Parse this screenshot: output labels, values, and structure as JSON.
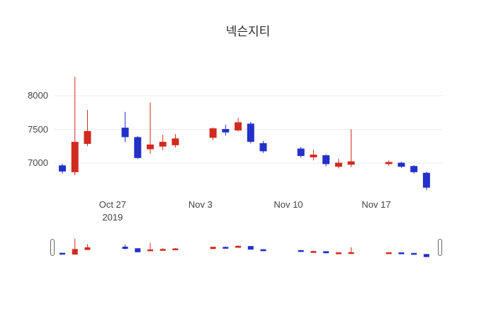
{
  "chart_data": {
    "type": "candlestick",
    "title": "넥슨지티",
    "increasing_color": "#d12a1f",
    "decreasing_color": "#2331c8",
    "grid_color": "#ebebeb",
    "axis_text_color": "#444444",
    "background_color": "#ffffff",
    "ylim": [
      6550,
      8400
    ],
    "y_ticks": [
      8000,
      7500,
      7000
    ],
    "x_ticks": [
      {
        "day": 4,
        "label": "Oct 27",
        "sub": "2019"
      },
      {
        "day": 11,
        "label": "Nov 3",
        "sub": ""
      },
      {
        "day": 18,
        "label": "Nov 10",
        "sub": ""
      },
      {
        "day": 25,
        "label": "Nov 17",
        "sub": ""
      }
    ],
    "rangeslider": true,
    "candles": [
      {
        "date": "2019-10-23",
        "day": 0,
        "open": 6960,
        "high": 6990,
        "low": 6840,
        "close": 6880
      },
      {
        "date": "2019-10-24",
        "day": 1,
        "open": 6870,
        "high": 8280,
        "low": 6820,
        "close": 7310
      },
      {
        "date": "2019-10-25",
        "day": 2,
        "open": 7290,
        "high": 7790,
        "low": 7250,
        "close": 7470
      },
      {
        "date": "2019-10-28",
        "day": 5,
        "open": 7520,
        "high": 7760,
        "low": 7310,
        "close": 7390
      },
      {
        "date": "2019-10-29",
        "day": 6,
        "open": 7380,
        "high": 7400,
        "low": 7060,
        "close": 7080
      },
      {
        "date": "2019-10-30",
        "day": 7,
        "open": 7210,
        "high": 7900,
        "low": 7140,
        "close": 7270
      },
      {
        "date": "2019-10-31",
        "day": 8,
        "open": 7250,
        "high": 7420,
        "low": 7190,
        "close": 7310
      },
      {
        "date": "2019-11-01",
        "day": 9,
        "open": 7270,
        "high": 7430,
        "low": 7230,
        "close": 7360
      },
      {
        "date": "2019-11-04",
        "day": 12,
        "open": 7380,
        "high": 7530,
        "low": 7340,
        "close": 7510
      },
      {
        "date": "2019-11-05",
        "day": 13,
        "open": 7500,
        "high": 7570,
        "low": 7410,
        "close": 7460
      },
      {
        "date": "2019-11-06",
        "day": 14,
        "open": 7490,
        "high": 7670,
        "low": 7470,
        "close": 7600
      },
      {
        "date": "2019-11-07",
        "day": 15,
        "open": 7580,
        "high": 7610,
        "low": 7290,
        "close": 7320
      },
      {
        "date": "2019-11-08",
        "day": 16,
        "open": 7290,
        "high": 7330,
        "low": 7150,
        "close": 7180
      },
      {
        "date": "2019-11-11",
        "day": 19,
        "open": 7210,
        "high": 7240,
        "low": 7080,
        "close": 7110
      },
      {
        "date": "2019-11-12",
        "day": 20,
        "open": 7090,
        "high": 7200,
        "low": 7040,
        "close": 7120
      },
      {
        "date": "2019-11-13",
        "day": 21,
        "open": 7110,
        "high": 7130,
        "low": 6950,
        "close": 6990
      },
      {
        "date": "2019-11-14",
        "day": 22,
        "open": 6950,
        "high": 7060,
        "low": 6920,
        "close": 7000
      },
      {
        "date": "2019-11-15",
        "day": 23,
        "open": 6980,
        "high": 7500,
        "low": 6940,
        "close": 7020
      },
      {
        "date": "2019-11-18",
        "day": 26,
        "open": 6990,
        "high": 7040,
        "low": 6960,
        "close": 7010
      },
      {
        "date": "2019-11-19",
        "day": 27,
        "open": 7000,
        "high": 7020,
        "low": 6930,
        "close": 6950
      },
      {
        "date": "2019-11-20",
        "day": 28,
        "open": 6950,
        "high": 6970,
        "low": 6840,
        "close": 6870
      },
      {
        "date": "2019-11-21",
        "day": 29,
        "open": 6850,
        "high": 6870,
        "low": 6600,
        "close": 6640
      }
    ]
  }
}
